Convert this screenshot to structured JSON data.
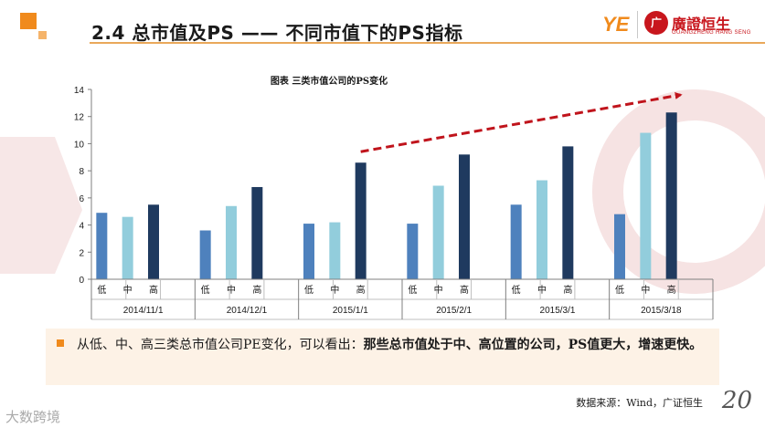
{
  "header": {
    "title": "2.4 总市值及PS —— 不同市值下的PS指标"
  },
  "brand": {
    "mark": "YE",
    "seal": "广",
    "name_cn": "廣證恒生",
    "name_en": "GUANGZHENG HANG SENG"
  },
  "colors": {
    "accent": "#f08a1c",
    "low": "#4e81bd",
    "mid": "#92cddc",
    "high": "#1f3a5f",
    "arrow": "#c0141c"
  },
  "chart_data": {
    "type": "bar",
    "title": "图表  三类市值公司的PS变化",
    "categories": [
      "2014/11/1",
      "2014/12/1",
      "2015/1/1",
      "2015/2/1",
      "2015/3/1",
      "2015/3/18"
    ],
    "subcategories": [
      "低",
      "中",
      "高"
    ],
    "series": [
      {
        "values": [
          4.9,
          3.6,
          4.1,
          4.1,
          5.5,
          4.8
        ]
      },
      {
        "values": [
          4.6,
          5.4,
          4.2,
          6.9,
          7.3,
          10.8
        ]
      },
      {
        "values": [
          5.5,
          6.8,
          8.6,
          9.2,
          9.8,
          12.3
        ]
      }
    ],
    "ylim": [
      0,
      14
    ],
    "yticks": [
      0,
      2,
      4,
      6,
      8,
      10,
      12,
      14
    ],
    "grid": false,
    "legend": "none",
    "annotation": "red dashed trend arrow rising from the 2015/1/1 high bar to the top-right"
  },
  "callout": {
    "normal": "从低、中、高三类总市值公司PE变化，可以看出：",
    "bold": "那些总市值处于中、高位置的公司，PS值更大，增速更快。"
  },
  "source": "数据来源：Wind，广证恒生",
  "page_number": "20",
  "footer_watermark": "大数跨境"
}
